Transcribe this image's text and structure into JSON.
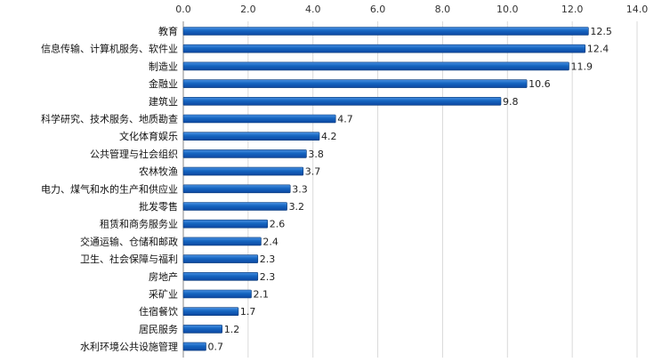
{
  "chart_data": {
    "type": "bar",
    "orientation": "horizontal",
    "x_axis_position": "top",
    "grid": true,
    "legend": "none",
    "title": "",
    "xlabel": "",
    "ylabel": "",
    "xlim": [
      0,
      14
    ],
    "x_ticks": [
      0,
      2,
      4,
      6,
      8,
      10,
      12,
      14
    ],
    "x_tick_labels": [
      "0.0",
      "2.0",
      "4.0",
      "6.0",
      "8.0",
      "10.0",
      "12.0",
      "14.0"
    ],
    "bar_color": "#1565c0",
    "bar_highlight": "#4a90e2",
    "categories": [
      "教育",
      "信息传输、计算机服务、软件业",
      "制造业",
      "金融业",
      "建筑业",
      "科学研究、技术服务、地质勘查",
      "文化体育娱乐",
      "公共管理与社会组织",
      "农林牧渔",
      "电力、煤气和水的生产和供应业",
      "批发零售",
      "租赁和商务服务业",
      "交通运输、仓储和邮政",
      "卫生、社会保障与福利",
      "房地产",
      "采矿业",
      "住宿餐饮",
      "居民服务",
      "水利环境公共设施管理"
    ],
    "values": [
      12.5,
      12.4,
      11.9,
      10.6,
      9.8,
      4.7,
      4.2,
      3.8,
      3.7,
      3.3,
      3.2,
      2.6,
      2.4,
      2.3,
      2.3,
      2.1,
      1.7,
      1.2,
      0.7
    ],
    "value_labels": [
      "12.5",
      "12.4",
      "11.9",
      "10.6",
      "9.8",
      "4.7",
      "4.2",
      "3.8",
      "3.7",
      "3.3",
      "3.2",
      "2.6",
      "2.4",
      "2.3",
      "2.3",
      "2.1",
      "1.7",
      "1.2",
      "0.7"
    ]
  }
}
